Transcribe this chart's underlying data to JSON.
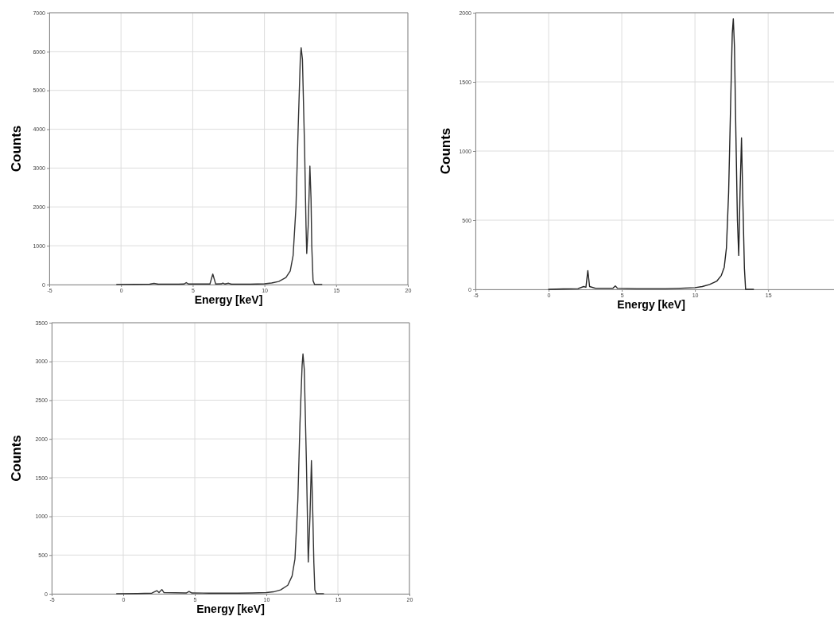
{
  "chart_data": [
    {
      "type": "line",
      "xlabel": "Energy [keV]",
      "ylabel": "Counts",
      "color": "#333333",
      "grid": true,
      "xlim": [
        -5,
        20
      ],
      "xticks": [
        -5,
        0,
        5,
        10,
        15,
        20
      ],
      "ylim": [
        0,
        7000
      ],
      "yticks": [
        0,
        1000,
        2000,
        3000,
        4000,
        5000,
        6000,
        7000
      ],
      "x": [
        -0.3,
        1,
        2,
        2.3,
        2.6,
        4,
        4.4,
        4.55,
        4.7,
        6.2,
        6.4,
        6.6,
        7.0,
        7.1,
        7.25,
        7.5,
        7.7,
        9,
        10,
        10.5,
        11,
        11.5,
        11.8,
        12.0,
        12.2,
        12.35,
        12.5,
        12.56,
        12.65,
        12.8,
        12.9,
        12.95,
        13.05,
        13.17,
        13.25,
        13.3,
        13.39,
        13.5,
        14
      ],
      "values": [
        0,
        5,
        10,
        30,
        10,
        10,
        15,
        50,
        15,
        15,
        270,
        15,
        20,
        40,
        15,
        35,
        10,
        10,
        20,
        40,
        80,
        180,
        350,
        750,
        2000,
        4000,
        5800,
        6100,
        5800,
        3500,
        1500,
        800,
        1500,
        3050,
        2200,
        1000,
        100,
        0,
        0
      ]
    },
    {
      "type": "line",
      "xlabel": "Energy [keV]",
      "ylabel": "Counts",
      "color": "#222222",
      "grid": true,
      "xlim": [
        -5,
        19.5
      ],
      "xticks": [
        -5,
        0,
        5,
        10,
        15
      ],
      "ylim": [
        0,
        2000
      ],
      "yticks": [
        0,
        500,
        1000,
        1500,
        2000
      ],
      "x": [
        0,
        1,
        2,
        2.4,
        2.55,
        2.68,
        2.8,
        3.2,
        4.4,
        4.56,
        4.7,
        6,
        8,
        9,
        10,
        10.5,
        11,
        11.5,
        11.8,
        12,
        12.15,
        12.3,
        12.45,
        12.55,
        12.62,
        12.7,
        12.8,
        12.9,
        12.99,
        13.08,
        13.18,
        13.28,
        13.38,
        13.46,
        14
      ],
      "values": [
        0,
        3,
        5,
        20,
        15,
        136,
        20,
        8,
        8,
        25,
        8,
        5,
        5,
        8,
        12,
        20,
        35,
        60,
        100,
        160,
        300,
        700,
        1400,
        1850,
        1956,
        1750,
        1100,
        500,
        245,
        700,
        1095,
        600,
        150,
        0,
        0
      ]
    },
    {
      "type": "line",
      "xlabel": "Energy [keV]",
      "ylabel": "Counts",
      "color": "#333333",
      "grid": true,
      "xlim": [
        -5,
        20
      ],
      "xticks": [
        -5,
        0,
        5,
        10,
        15,
        20
      ],
      "ylim": [
        0,
        3500
      ],
      "yticks": [
        0,
        500,
        1000,
        1500,
        2000,
        2500,
        3000,
        3500
      ],
      "x": [
        -0.46,
        1,
        2,
        2.35,
        2.5,
        2.7,
        2.85,
        4.4,
        4.6,
        4.8,
        6,
        8,
        9,
        10,
        10.5,
        11,
        11.5,
        11.8,
        12.0,
        12.2,
        12.35,
        12.5,
        12.56,
        12.65,
        12.8,
        12.9,
        12.93,
        13.05,
        13.15,
        13.25,
        13.32,
        13.39,
        13.5,
        14
      ],
      "values": [
        0,
        3,
        8,
        40,
        15,
        55,
        15,
        10,
        30,
        10,
        8,
        8,
        10,
        15,
        25,
        50,
        110,
        230,
        450,
        1200,
        2200,
        2950,
        3097,
        2900,
        1700,
        700,
        410,
        1000,
        1720,
        1000,
        400,
        50,
        0,
        0
      ]
    }
  ]
}
